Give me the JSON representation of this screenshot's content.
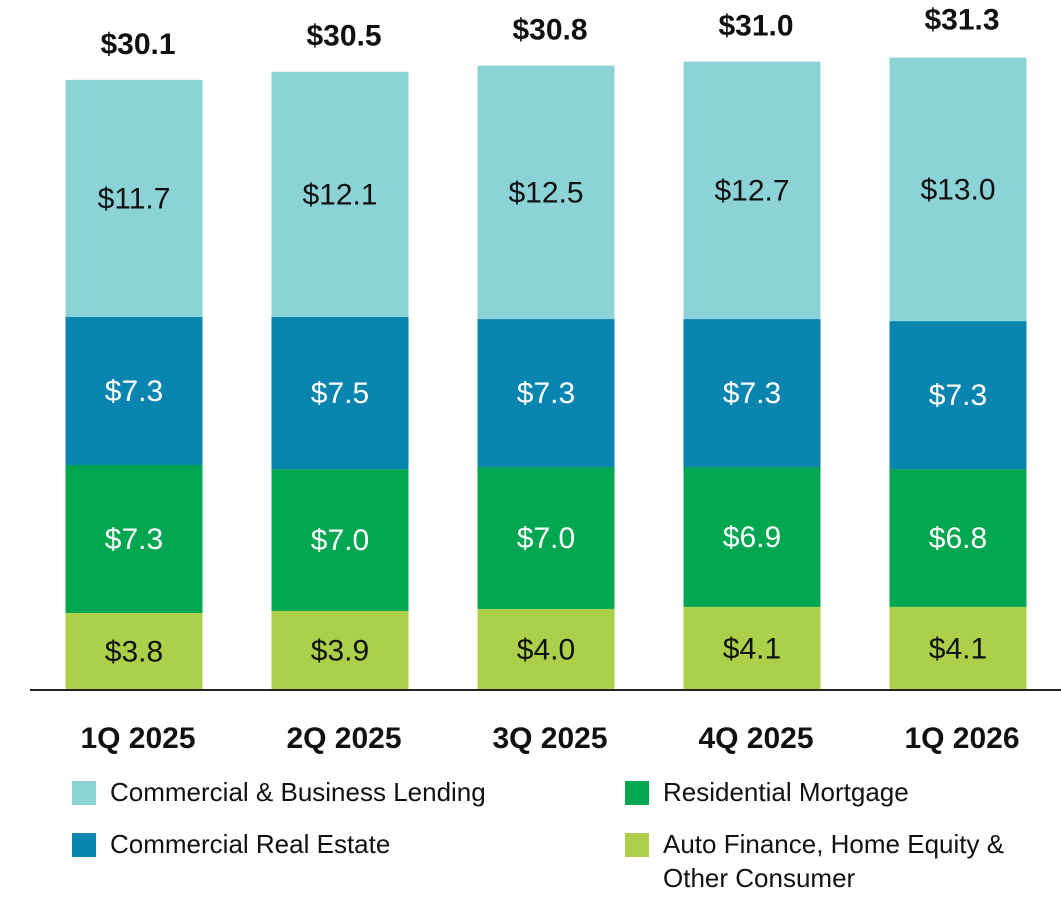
{
  "chart_data": {
    "type": "stacked_bar",
    "categories": [
      "1Q 2025",
      "2Q 2025",
      "3Q 2025",
      "4Q 2025",
      "1Q 2026"
    ],
    "series": [
      {
        "name": "Commercial & Business Lending",
        "color": "#8bd3d6",
        "values": [
          11.7,
          12.1,
          12.5,
          12.7,
          13.0
        ],
        "value_labels": [
          "$11.7",
          "$12.1",
          "$12.5",
          "$12.7",
          "$13.0"
        ]
      },
      {
        "name": "Residential Mortgage",
        "color": "#00a650",
        "values": [
          7.3,
          7.0,
          7.0,
          6.9,
          6.8
        ],
        "value_labels": [
          "$7.3",
          "$7.0",
          "$7.0",
          "$6.9",
          "$6.8"
        ]
      },
      {
        "name": "Commercial Real Estate",
        "color": "#0a85b0",
        "values": [
          7.3,
          7.5,
          7.3,
          7.3,
          7.3
        ],
        "value_labels": [
          "$7.3",
          "$7.5",
          "$7.3",
          "$7.3",
          "$7.3"
        ]
      },
      {
        "name": "Auto Finance, Home Equity & Other Consumer",
        "color": "#add04a",
        "values": [
          3.8,
          3.9,
          4.0,
          4.1,
          4.1
        ],
        "value_labels": [
          "$3.8",
          "$3.9",
          "$4.0",
          "$4.1",
          "$4.1"
        ]
      }
    ],
    "totals": {
      "values": [
        30.1,
        30.5,
        30.8,
        31.0,
        31.3
      ],
      "value_labels": [
        "$30.1",
        "$30.5",
        "$30.8",
        "$31.0",
        "$31.3"
      ]
    }
  }
}
